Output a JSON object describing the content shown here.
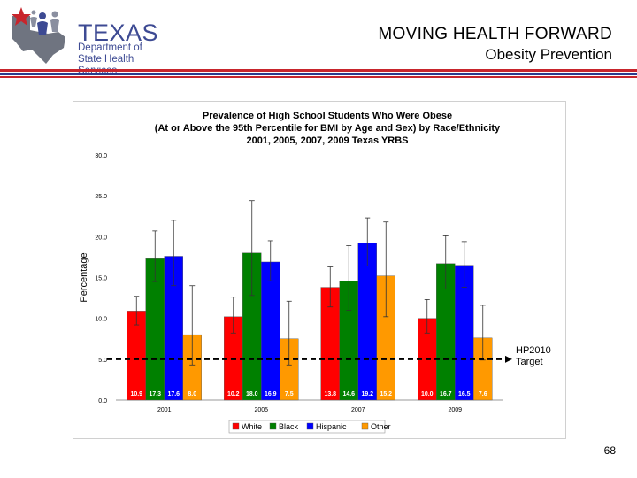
{
  "header": {
    "logo_title": "TEXAS",
    "logo_sub_1": "Department of",
    "logo_sub_2": "State Health Services",
    "title": "MOVING HEALTH FORWARD",
    "subtitle": "Obesity Prevention"
  },
  "colors": {
    "rule_red": "#c8252c",
    "rule_blue": "#2c3b8c",
    "white_series": "#ff0000",
    "black_series": "#008000",
    "hispanic_series": "#0000ff",
    "other_series": "#ff9900"
  },
  "chart_data": {
    "type": "bar",
    "title_lines": [
      "Prevalence of High School Students Who Were Obese",
      "(At or Above the 95th Percentile for BMI by Age and Sex) by Race/Ethnicity",
      "2001, 2005, 2007, 2009 Texas YRBS"
    ],
    "ylabel": "Percentage",
    "ylim": [
      0,
      30
    ],
    "yticks": [
      "0.0",
      "5.0",
      "10.0",
      "15.0",
      "20.0",
      "25.0",
      "30.0"
    ],
    "categories": [
      "2001",
      "2005",
      "2007",
      "2009"
    ],
    "series": [
      {
        "name": "White",
        "color": "#ff0000",
        "values": [
          10.9,
          10.2,
          13.8,
          10.0
        ],
        "labels": [
          "10.9",
          "10.2",
          "13.8",
          "10.0"
        ],
        "err_low": [
          9.2,
          8.2,
          11.4,
          8.2
        ],
        "err_high": [
          12.7,
          12.6,
          16.3,
          12.3
        ]
      },
      {
        "name": "Black",
        "color": "#008000",
        "values": [
          17.3,
          18.0,
          14.6,
          16.7
        ],
        "labels": [
          "17.3",
          "18.0",
          "14.6",
          "16.7"
        ],
        "err_low": [
          14.5,
          12.8,
          11.0,
          13.6
        ],
        "err_high": [
          20.7,
          24.4,
          18.9,
          20.1
        ]
      },
      {
        "name": "Hispanic",
        "color": "#0000ff",
        "values": [
          17.6,
          16.9,
          19.2,
          16.5
        ],
        "labels": [
          "17.6",
          "16.9",
          "19.2",
          "16.5"
        ],
        "err_low": [
          14.0,
          14.6,
          16.4,
          13.8
        ],
        "err_high": [
          22.0,
          19.5,
          22.3,
          19.4
        ]
      },
      {
        "name": "Other",
        "color": "#ff9900",
        "values": [
          8.0,
          7.5,
          15.2,
          7.6
        ],
        "labels": [
          "8.0",
          "7.5",
          "15.2",
          "7.6"
        ],
        "err_low": [
          4.3,
          4.3,
          10.2,
          4.9
        ],
        "err_high": [
          14.0,
          12.1,
          21.8,
          11.6
        ]
      }
    ],
    "target": {
      "value": 5.0,
      "label_lines": [
        "HP2010",
        "Target"
      ]
    },
    "legend_placement": "bottom",
    "grid": false
  },
  "page_number": "68"
}
